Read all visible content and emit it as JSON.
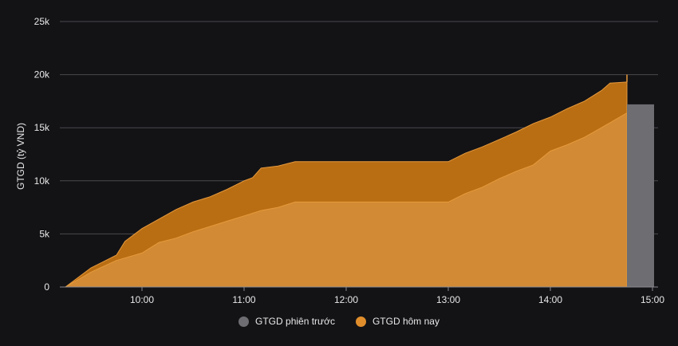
{
  "chart_data": {
    "type": "area",
    "ylabel": "GTGD (tỷ VND)",
    "ylim": [
      0,
      25000
    ],
    "yticks": [
      0,
      5000,
      10000,
      15000,
      20000,
      25000
    ],
    "ytick_labels": [
      "0",
      "5k",
      "10k",
      "15k",
      "20k",
      "25k"
    ],
    "xticks": [
      "10:00",
      "11:00",
      "12:00",
      "13:00",
      "14:00",
      "15:00"
    ],
    "grid": true,
    "legend_position": "bottom",
    "series": [
      {
        "name": "GTGD hôm nay",
        "kind": "stacked-area",
        "color": "#E08E2C",
        "lower_color": "#D28A34",
        "upper_color": "#B96E14",
        "lower_layer": {
          "x": [
            "09:15",
            "09:30",
            "09:45",
            "10:00",
            "10:10",
            "10:20",
            "10:30",
            "10:40",
            "10:50",
            "11:00",
            "11:10",
            "11:20",
            "11:30",
            "11:40",
            "11:50",
            "12:00",
            "12:30",
            "13:00",
            "13:10",
            "13:20",
            "13:30",
            "13:40",
            "13:50",
            "14:00",
            "14:10",
            "14:20",
            "14:30",
            "14:45"
          ],
          "values": [
            0,
            1400,
            2500,
            3200,
            4200,
            4600,
            5200,
            5700,
            6200,
            6700,
            7200,
            7500,
            8000,
            8000,
            8000,
            8000,
            8000,
            8000,
            8800,
            9400,
            10200,
            10900,
            11500,
            12800,
            13400,
            14100,
            15000,
            16400
          ]
        },
        "total": {
          "x": [
            "09:15",
            "09:30",
            "09:45",
            "09:50",
            "10:00",
            "10:10",
            "10:20",
            "10:30",
            "10:40",
            "10:50",
            "11:00",
            "11:05",
            "11:10",
            "11:20",
            "11:30",
            "11:40",
            "11:50",
            "12:00",
            "12:30",
            "13:00",
            "13:10",
            "13:20",
            "13:30",
            "13:40",
            "13:50",
            "14:00",
            "14:10",
            "14:20",
            "14:30",
            "14:35",
            "14:45"
          ],
          "values": [
            0,
            1800,
            3000,
            4300,
            5500,
            6400,
            7300,
            8000,
            8500,
            9200,
            10000,
            10300,
            11200,
            11400,
            11800,
            11800,
            11800,
            11800,
            11800,
            11800,
            12600,
            13200,
            13900,
            14600,
            15400,
            16000,
            16800,
            17500,
            18500,
            19200,
            19300
          ]
        }
      },
      {
        "name": "GTGD phiên trước",
        "kind": "bar",
        "color": "#6E6E72",
        "x_start": "14:45",
        "x_end": "15:00",
        "value": 17200
      }
    ]
  }
}
